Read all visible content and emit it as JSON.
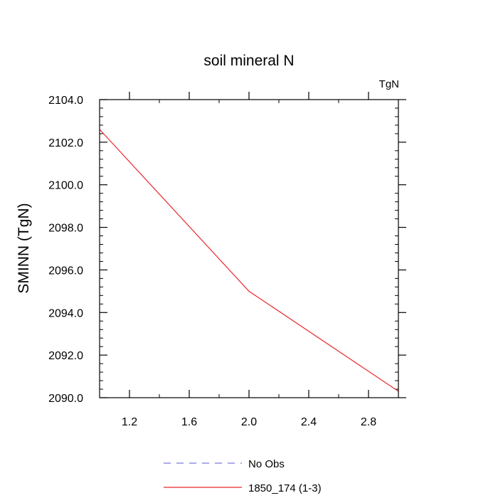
{
  "chart_data": {
    "type": "line",
    "title": "soil mineral N",
    "units_label": "TgN",
    "xlabel": "",
    "ylabel": "SMINN  (TgN)",
    "xlim": [
      1.0,
      3.0
    ],
    "ylim": [
      2090.0,
      2104.0
    ],
    "x_ticks": [
      1.2,
      1.6,
      2.0,
      2.4,
      2.8
    ],
    "x_tick_labels": [
      "1.2",
      "1.6",
      "2.0",
      "2.4",
      "2.8"
    ],
    "x_minor_step": 0.2,
    "y_ticks": [
      2090,
      2092,
      2094,
      2096,
      2098,
      2100,
      2102,
      2104
    ],
    "y_tick_labels": [
      "2090.0",
      "2092.0",
      "2094.0",
      "2096.0",
      "2098.0",
      "2100.0",
      "2102.0",
      "2104.0"
    ],
    "y_minor_step": 0.4,
    "grid": false,
    "legend_position": "bottom-center",
    "series": [
      {
        "name": "No Obs",
        "color": "#7b7bd6",
        "dash": "dashed",
        "x": [],
        "y": []
      },
      {
        "name": "1850_174 (1-3)",
        "color": "#e8262a",
        "dash": "solid",
        "x": [
          1.0,
          2.0,
          3.0
        ],
        "y": [
          2102.6,
          2095.0,
          2090.3
        ]
      }
    ]
  }
}
